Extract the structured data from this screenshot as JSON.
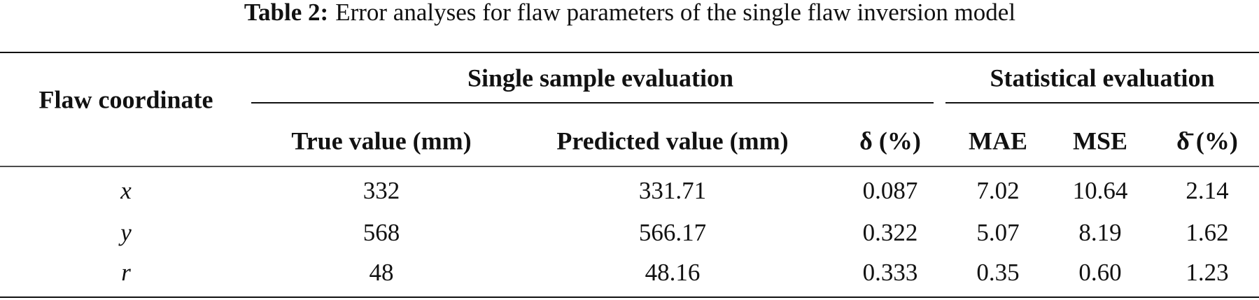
{
  "caption": {
    "label": "Table 2:",
    "text": "Error analyses for flaw parameters of the single flaw inversion model"
  },
  "table": {
    "row_header": "Flaw coordinate",
    "groups": [
      "Single sample evaluation",
      "Statistical evaluation"
    ],
    "columns": [
      "True value (mm)",
      "Predicted value (mm)",
      "δ (%)",
      "MAE",
      "MSE",
      "δ̄ (%)"
    ],
    "rows": [
      [
        "x",
        "332",
        "331.71",
        "0.087",
        "7.02",
        "10.64",
        "2.14"
      ],
      [
        "y",
        "568",
        "566.17",
        "0.322",
        "5.07",
        "8.19",
        "1.62"
      ],
      [
        "r",
        "48",
        "48.16",
        "0.333",
        "0.35",
        "0.60",
        "1.23"
      ]
    ]
  }
}
